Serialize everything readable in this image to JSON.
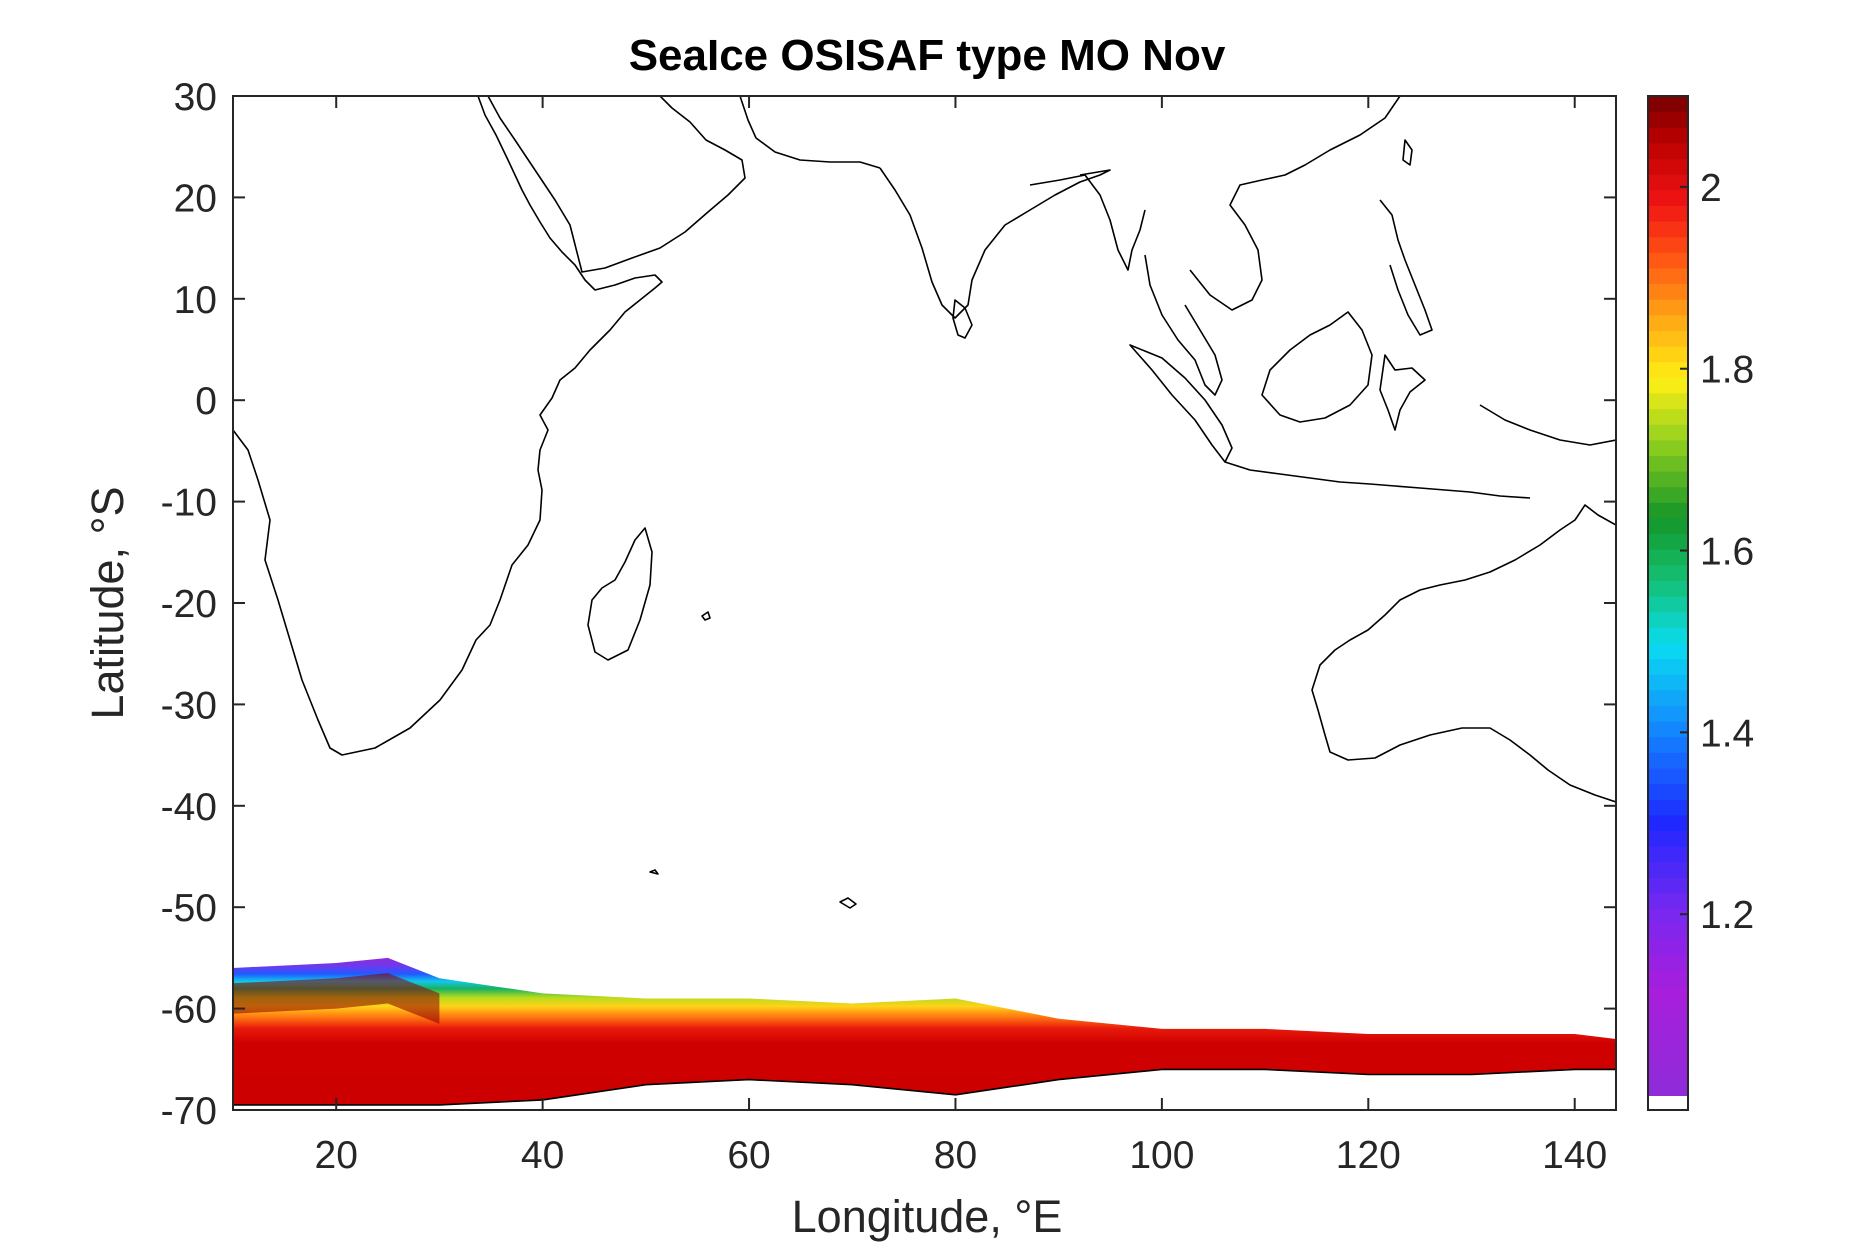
{
  "chart_data": {
    "type": "heatmap",
    "title": "SeaIce OSISAF type MO Nov",
    "xlabel": "Longitude, °E",
    "ylabel": "Latitude, °S",
    "xlim": [
      10,
      144
    ],
    "ylim": [
      -70,
      30
    ],
    "xticks": [
      20,
      40,
      60,
      80,
      100,
      120,
      140
    ],
    "xtick_labels": [
      "20",
      "40",
      "60",
      "80",
      "100",
      "120",
      "140"
    ],
    "yticks": [
      30,
      20,
      10,
      0,
      -10,
      -20,
      -30,
      -40,
      -50,
      -60,
      -70
    ],
    "ytick_labels": [
      "30",
      "20",
      "10",
      "0",
      "-10",
      "-20",
      "-30",
      "-40",
      "-50",
      "-60",
      "-70"
    ],
    "colorbar": {
      "colormap": "jet-like (purple-blue-cyan-green-yellow-orange-red-darkred)",
      "range": [
        1.0,
        2.1
      ],
      "ticks": [
        1.2,
        1.4,
        1.6,
        1.8,
        2.0
      ],
      "tick_labels": [
        "1.2",
        "1.4",
        "1.6",
        "1.8",
        "2"
      ]
    },
    "ice_band": {
      "lon": [
        10,
        20,
        25,
        30,
        40,
        50,
        60,
        70,
        80,
        90,
        100,
        110,
        120,
        130,
        140,
        144
      ],
      "edge_lat": [
        -56,
        -55.5,
        -55,
        -57,
        -58.5,
        -59,
        -59,
        -59.5,
        -59,
        -61,
        -62,
        -62,
        -62.5,
        -62.5,
        -62.5,
        -63
      ],
      "coast_lat": [
        -69.5,
        -69.5,
        -69.5,
        -69.5,
        -69,
        -67.5,
        -67,
        -67.5,
        -68.5,
        -67,
        -66,
        -66,
        -66.5,
        -66.5,
        -66,
        -66
      ],
      "dominant_value": 2.0
    },
    "grid": false
  }
}
